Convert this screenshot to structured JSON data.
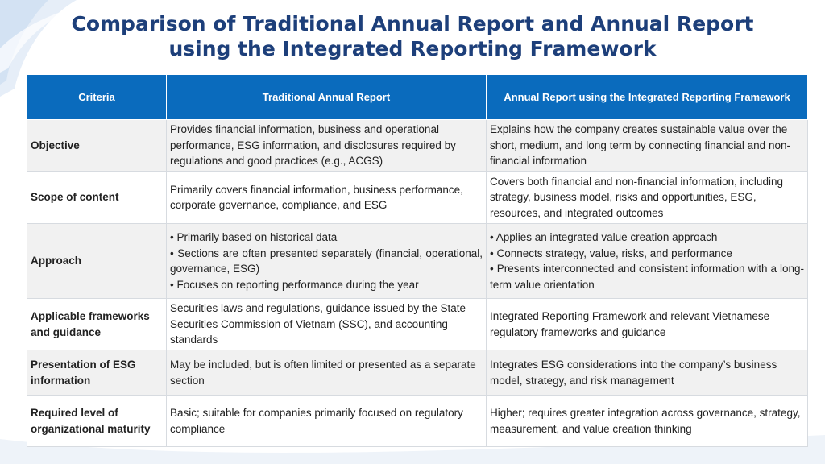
{
  "title": {
    "line1": "Comparison of Traditional Annual Report and Annual Report",
    "line2": "using the Integrated Reporting Framework"
  },
  "table": {
    "headers": {
      "criteria": "Criteria",
      "traditional": "Traditional Annual Report",
      "integrated": "Annual Report using the Integrated Reporting Framework"
    },
    "rows": [
      {
        "criteria": "Objective",
        "traditional": "Provides financial information, business and operational performance, ESG information, and disclosures required by regulations and good practices (e.g., ACGS)",
        "integrated": "Explains how the company creates sustainable value over the short, medium, and long term by connecting financial and non-financial information"
      },
      {
        "criteria": "Scope of content",
        "traditional": "Primarily covers financial information, business performance, corporate governance, compliance, and ESG",
        "integrated": "Covers both financial and non-financial information, including strategy, business model, risks and opportunities, ESG, resources, and integrated outcomes"
      },
      {
        "criteria": "Approach",
        "traditional": [
          "• Primarily based on historical data",
          "• Sections are often presented separately (financial, operational, governance, ESG)",
          "• Focuses on reporting performance during the year"
        ],
        "integrated": [
          "• Applies an integrated value creation approach",
          "• Connects strategy, value, risks, and performance",
          "• Presents interconnected and consistent information with a long-term value orientation"
        ]
      },
      {
        "criteria": "Applicable frameworks and guidance",
        "traditional": "Securities laws and regulations, guidance issued by the State Securities Commission of Vietnam (SSC), and accounting standards",
        "integrated": "Integrated Reporting Framework and relevant Vietnamese regulatory frameworks and guidance"
      },
      {
        "criteria": "Presentation of ESG information",
        "traditional": "May be included, but is often limited or presented as a separate section",
        "integrated": "Integrates ESG considerations into the company’s business model, strategy, and risk management"
      },
      {
        "criteria": "Required level of organizational maturity",
        "traditional": "Basic; suitable for companies primarily focused on regulatory compliance",
        "integrated": "Higher; requires greater integration across governance, strategy, measurement, and value creation thinking"
      }
    ]
  }
}
